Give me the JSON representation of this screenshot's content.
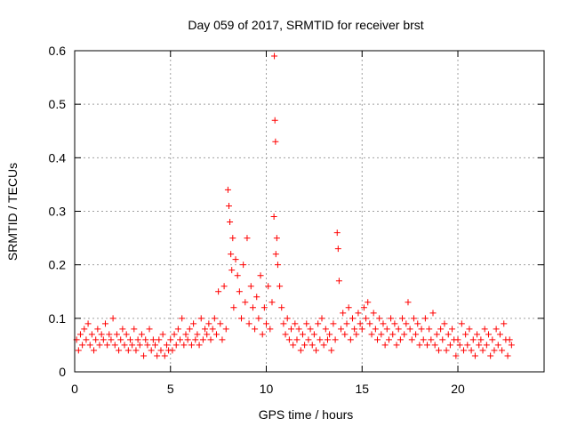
{
  "chart_data": {
    "type": "scatter",
    "title": "Day 059 of 2017, SRMTID for receiver brst",
    "xlabel": "GPS time / hours",
    "ylabel": "SRMTID / TECUs",
    "xlim": [
      0,
      24.5
    ],
    "ylim": [
      0,
      0.6
    ],
    "x_ticks": [
      0,
      5,
      10,
      15,
      20
    ],
    "x_tick_labels": [
      "0",
      "5",
      "10",
      "15",
      "20"
    ],
    "y_ticks": [
      0,
      0.1,
      0.2,
      0.3,
      0.4,
      0.5,
      0.6
    ],
    "y_tick_labels": [
      "0",
      "0.1",
      "0.2",
      "0.3",
      "0.4",
      "0.5",
      "0.6"
    ],
    "grid": true,
    "marker": "+",
    "color": "#ff0000",
    "series": [
      {
        "name": "SRMTID",
        "points": [
          [
            0.1,
            0.06
          ],
          [
            0.2,
            0.04
          ],
          [
            0.3,
            0.07
          ],
          [
            0.4,
            0.05
          ],
          [
            0.5,
            0.08
          ],
          [
            0.6,
            0.06
          ],
          [
            0.7,
            0.09
          ],
          [
            0.8,
            0.05
          ],
          [
            0.9,
            0.07
          ],
          [
            1.0,
            0.04
          ],
          [
            1.1,
            0.06
          ],
          [
            1.2,
            0.08
          ],
          [
            1.3,
            0.05
          ],
          [
            1.4,
            0.07
          ],
          [
            1.5,
            0.06
          ],
          [
            1.6,
            0.09
          ],
          [
            1.7,
            0.05
          ],
          [
            1.8,
            0.07
          ],
          [
            1.9,
            0.06
          ],
          [
            2.0,
            0.1
          ],
          [
            2.1,
            0.05
          ],
          [
            2.2,
            0.07
          ],
          [
            2.3,
            0.04
          ],
          [
            2.4,
            0.06
          ],
          [
            2.5,
            0.08
          ],
          [
            2.6,
            0.05
          ],
          [
            2.7,
            0.07
          ],
          [
            2.8,
            0.04
          ],
          [
            2.9,
            0.06
          ],
          [
            3.0,
            0.05
          ],
          [
            3.1,
            0.08
          ],
          [
            3.2,
            0.04
          ],
          [
            3.3,
            0.06
          ],
          [
            3.4,
            0.05
          ],
          [
            3.5,
            0.07
          ],
          [
            3.6,
            0.03
          ],
          [
            3.7,
            0.06
          ],
          [
            3.8,
            0.05
          ],
          [
            3.9,
            0.08
          ],
          [
            4.0,
            0.04
          ],
          [
            4.1,
            0.06
          ],
          [
            4.2,
            0.05
          ],
          [
            4.3,
            0.03
          ],
          [
            4.4,
            0.06
          ],
          [
            4.5,
            0.04
          ],
          [
            4.6,
            0.07
          ],
          [
            4.7,
            0.03
          ],
          [
            4.8,
            0.05
          ],
          [
            4.9,
            0.04
          ],
          [
            5.0,
            0.06
          ],
          [
            5.1,
            0.04
          ],
          [
            5.2,
            0.07
          ],
          [
            5.3,
            0.05
          ],
          [
            5.4,
            0.08
          ],
          [
            5.5,
            0.06
          ],
          [
            5.6,
            0.1
          ],
          [
            5.7,
            0.05
          ],
          [
            5.8,
            0.07
          ],
          [
            5.9,
            0.06
          ],
          [
            6.0,
            0.08
          ],
          [
            6.1,
            0.05
          ],
          [
            6.2,
            0.09
          ],
          [
            6.3,
            0.06
          ],
          [
            6.4,
            0.07
          ],
          [
            6.5,
            0.05
          ],
          [
            6.6,
            0.1
          ],
          [
            6.7,
            0.06
          ],
          [
            6.8,
            0.08
          ],
          [
            6.9,
            0.07
          ],
          [
            7.0,
            0.09
          ],
          [
            7.1,
            0.06
          ],
          [
            7.2,
            0.08
          ],
          [
            7.3,
            0.1
          ],
          [
            7.4,
            0.07
          ],
          [
            7.5,
            0.15
          ],
          [
            7.6,
            0.09
          ],
          [
            7.7,
            0.06
          ],
          [
            7.8,
            0.16
          ],
          [
            7.9,
            0.08
          ],
          [
            8.0,
            0.34
          ],
          [
            8.05,
            0.31
          ],
          [
            8.1,
            0.28
          ],
          [
            8.15,
            0.22
          ],
          [
            8.2,
            0.19
          ],
          [
            8.25,
            0.25
          ],
          [
            8.3,
            0.12
          ],
          [
            8.4,
            0.21
          ],
          [
            8.5,
            0.18
          ],
          [
            8.6,
            0.15
          ],
          [
            8.7,
            0.1
          ],
          [
            8.8,
            0.2
          ],
          [
            8.9,
            0.13
          ],
          [
            9.0,
            0.25
          ],
          [
            9.1,
            0.09
          ],
          [
            9.2,
            0.16
          ],
          [
            9.3,
            0.12
          ],
          [
            9.4,
            0.08
          ],
          [
            9.5,
            0.14
          ],
          [
            9.6,
            0.1
          ],
          [
            9.7,
            0.18
          ],
          [
            9.8,
            0.07
          ],
          [
            9.9,
            0.12
          ],
          [
            10.0,
            0.09
          ],
          [
            10.1,
            0.16
          ],
          [
            10.2,
            0.08
          ],
          [
            10.3,
            0.13
          ],
          [
            10.4,
            0.29
          ],
          [
            10.42,
            0.59
          ],
          [
            10.45,
            0.47
          ],
          [
            10.48,
            0.43
          ],
          [
            10.5,
            0.22
          ],
          [
            10.55,
            0.25
          ],
          [
            10.6,
            0.2
          ],
          [
            10.7,
            0.16
          ],
          [
            10.8,
            0.12
          ],
          [
            10.9,
            0.09
          ],
          [
            11.0,
            0.07
          ],
          [
            11.1,
            0.1
          ],
          [
            11.2,
            0.06
          ],
          [
            11.3,
            0.08
          ],
          [
            11.4,
            0.05
          ],
          [
            11.5,
            0.09
          ],
          [
            11.6,
            0.06
          ],
          [
            11.7,
            0.08
          ],
          [
            11.8,
            0.04
          ],
          [
            11.9,
            0.07
          ],
          [
            12.0,
            0.05
          ],
          [
            12.1,
            0.09
          ],
          [
            12.2,
            0.06
          ],
          [
            12.3,
            0.08
          ],
          [
            12.4,
            0.05
          ],
          [
            12.5,
            0.07
          ],
          [
            12.6,
            0.04
          ],
          [
            12.7,
            0.09
          ],
          [
            12.8,
            0.06
          ],
          [
            12.9,
            0.1
          ],
          [
            13.0,
            0.05
          ],
          [
            13.1,
            0.08
          ],
          [
            13.2,
            0.06
          ],
          [
            13.3,
            0.07
          ],
          [
            13.4,
            0.04
          ],
          [
            13.5,
            0.09
          ],
          [
            13.6,
            0.06
          ],
          [
            13.7,
            0.26
          ],
          [
            13.75,
            0.23
          ],
          [
            13.8,
            0.17
          ],
          [
            13.9,
            0.08
          ],
          [
            14.0,
            0.11
          ],
          [
            14.1,
            0.07
          ],
          [
            14.2,
            0.09
          ],
          [
            14.3,
            0.12
          ],
          [
            14.4,
            0.06
          ],
          [
            14.5,
            0.1
          ],
          [
            14.6,
            0.08
          ],
          [
            14.7,
            0.07
          ],
          [
            14.8,
            0.11
          ],
          [
            14.9,
            0.09
          ],
          [
            15.0,
            0.08
          ],
          [
            15.1,
            0.12
          ],
          [
            15.2,
            0.1
          ],
          [
            15.3,
            0.13
          ],
          [
            15.4,
            0.09
          ],
          [
            15.5,
            0.07
          ],
          [
            15.6,
            0.11
          ],
          [
            15.7,
            0.08
          ],
          [
            15.8,
            0.06
          ],
          [
            15.9,
            0.1
          ],
          [
            16.0,
            0.07
          ],
          [
            16.1,
            0.09
          ],
          [
            16.2,
            0.05
          ],
          [
            16.3,
            0.08
          ],
          [
            16.4,
            0.06
          ],
          [
            16.5,
            0.1
          ],
          [
            16.6,
            0.07
          ],
          [
            16.7,
            0.09
          ],
          [
            16.8,
            0.05
          ],
          [
            16.9,
            0.08
          ],
          [
            17.0,
            0.06
          ],
          [
            17.1,
            0.1
          ],
          [
            17.2,
            0.07
          ],
          [
            17.3,
            0.09
          ],
          [
            17.4,
            0.13
          ],
          [
            17.5,
            0.08
          ],
          [
            17.6,
            0.06
          ],
          [
            17.7,
            0.1
          ],
          [
            17.8,
            0.07
          ],
          [
            17.9,
            0.09
          ],
          [
            18.0,
            0.05
          ],
          [
            18.1,
            0.08
          ],
          [
            18.2,
            0.06
          ],
          [
            18.3,
            0.1
          ],
          [
            18.4,
            0.05
          ],
          [
            18.5,
            0.08
          ],
          [
            18.6,
            0.06
          ],
          [
            18.7,
            0.11
          ],
          [
            18.8,
            0.05
          ],
          [
            18.9,
            0.07
          ],
          [
            19.0,
            0.04
          ],
          [
            19.1,
            0.08
          ],
          [
            19.2,
            0.06
          ],
          [
            19.3,
            0.09
          ],
          [
            19.4,
            0.04
          ],
          [
            19.5,
            0.07
          ],
          [
            19.6,
            0.05
          ],
          [
            19.7,
            0.08
          ],
          [
            19.8,
            0.06
          ],
          [
            19.9,
            0.03
          ],
          [
            20.0,
            0.06
          ],
          [
            20.1,
            0.05
          ],
          [
            20.2,
            0.09
          ],
          [
            20.3,
            0.04
          ],
          [
            20.4,
            0.07
          ],
          [
            20.5,
            0.05
          ],
          [
            20.6,
            0.08
          ],
          [
            20.7,
            0.04
          ],
          [
            20.8,
            0.06
          ],
          [
            20.9,
            0.03
          ],
          [
            21.0,
            0.07
          ],
          [
            21.1,
            0.05
          ],
          [
            21.2,
            0.06
          ],
          [
            21.3,
            0.04
          ],
          [
            21.4,
            0.08
          ],
          [
            21.5,
            0.05
          ],
          [
            21.6,
            0.07
          ],
          [
            21.7,
            0.03
          ],
          [
            21.8,
            0.06
          ],
          [
            21.9,
            0.04
          ],
          [
            22.0,
            0.08
          ],
          [
            22.1,
            0.05
          ],
          [
            22.2,
            0.07
          ],
          [
            22.3,
            0.04
          ],
          [
            22.4,
            0.09
          ],
          [
            22.5,
            0.06
          ],
          [
            22.6,
            0.03
          ],
          [
            22.7,
            0.06
          ],
          [
            22.8,
            0.05
          ]
        ]
      }
    ]
  }
}
